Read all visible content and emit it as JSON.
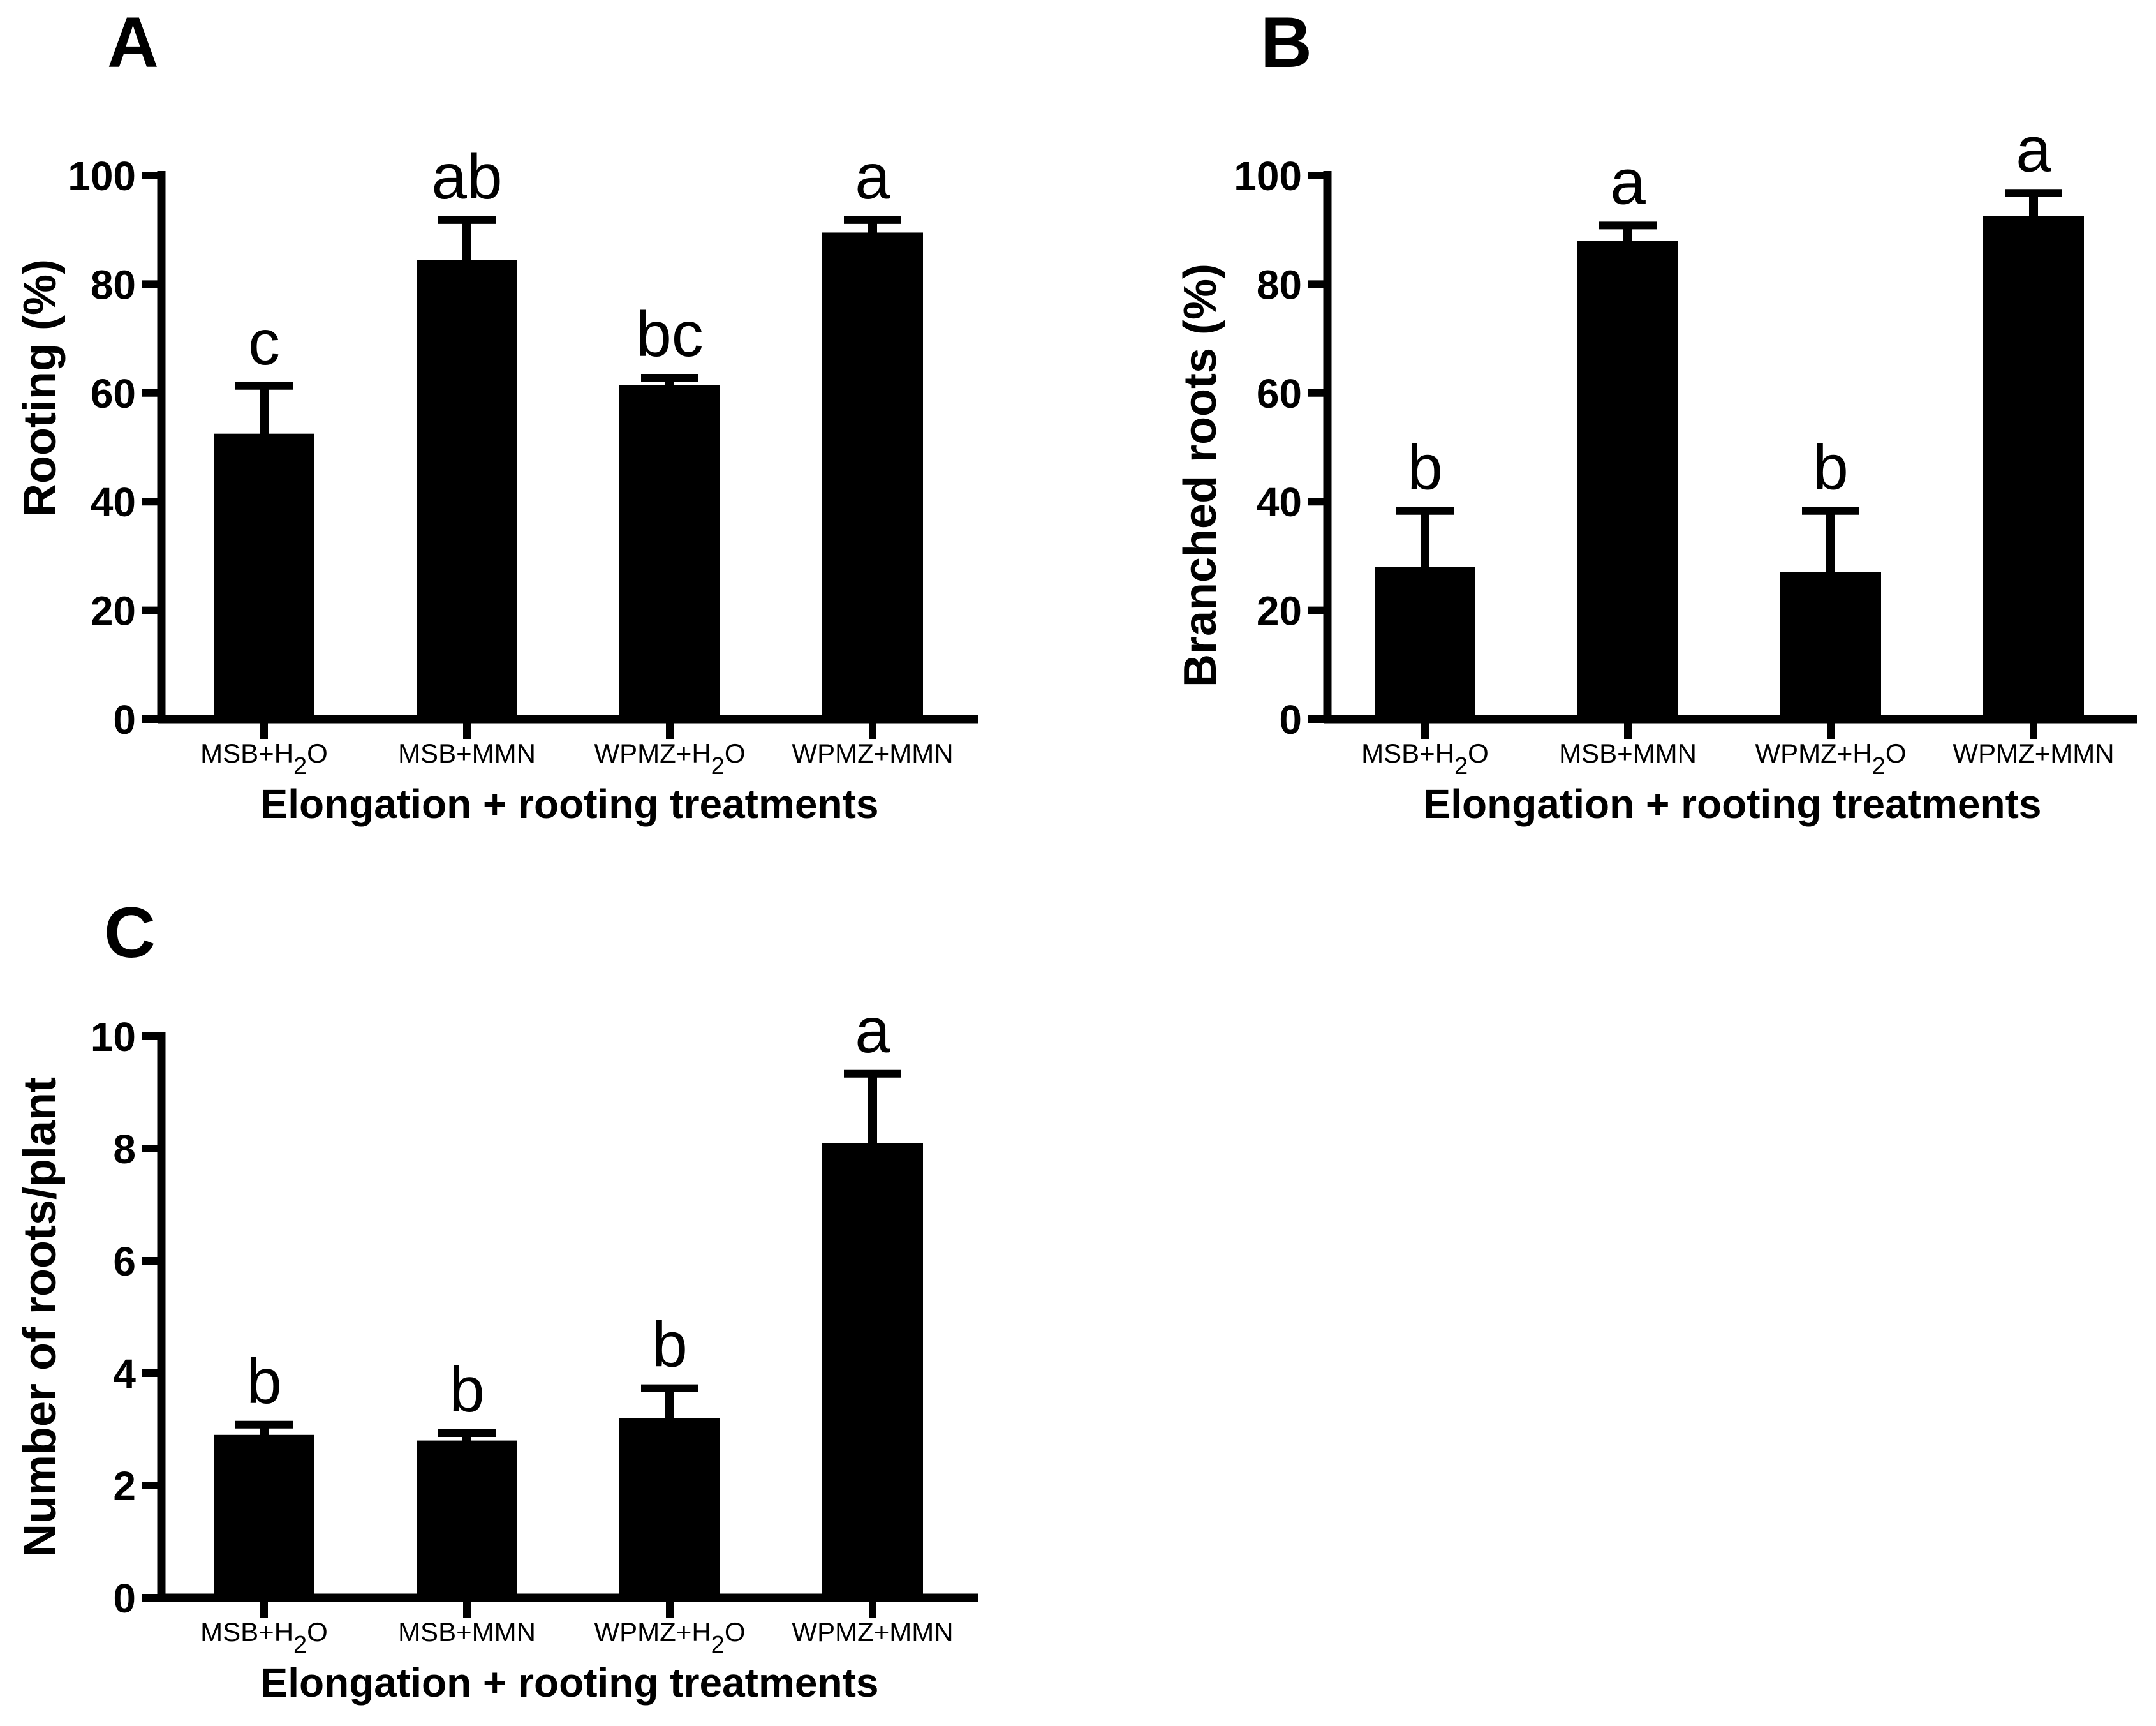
{
  "figure": {
    "background_color": "#ffffff",
    "ink_color": "#000000"
  },
  "chart_data": [
    {
      "type": "bar",
      "panel": "A",
      "title": "",
      "ylabel": "Rooting (%)",
      "xlabel": "Elongation + rooting treatments",
      "categories": [
        "MSB+H₂O",
        "MSB+MMN",
        "WPMZ+H₂O",
        "WPMZ+MMN"
      ],
      "values": [
        52.5,
        84.5,
        61.5,
        89.5
      ],
      "error_bars_upper": [
        9.5,
        8,
        2,
        3
      ],
      "sig_letters": [
        "c",
        "ab",
        "bc",
        "a"
      ],
      "ylim": [
        0,
        100
      ],
      "yticks": [
        0,
        20,
        40,
        60,
        80,
        100
      ],
      "bar_color": "#000000",
      "grid": false,
      "legend": "none"
    },
    {
      "type": "bar",
      "panel": "B",
      "title": "",
      "ylabel": "Branched roots (%)",
      "xlabel": "Elongation + rooting treatments",
      "categories": [
        "MSB+H₂O",
        "MSB+MMN",
        "WPMZ+H₂O",
        "WPMZ+MMN"
      ],
      "values": [
        28,
        88,
        27,
        92.5
      ],
      "error_bars_upper": [
        11,
        3.5,
        12,
        5
      ],
      "sig_letters": [
        "b",
        "a",
        "b",
        "a"
      ],
      "ylim": [
        0,
        100
      ],
      "yticks": [
        0,
        20,
        40,
        60,
        80,
        100
      ],
      "bar_color": "#000000",
      "grid": false,
      "legend": "none"
    },
    {
      "type": "bar",
      "panel": "C",
      "title": "",
      "ylabel": "Number of roots/plant",
      "xlabel": "Elongation + rooting treatments",
      "categories": [
        "MSB+H₂O",
        "MSB+MMN",
        "WPMZ+H₂O",
        "WPMZ+MMN"
      ],
      "values": [
        2.9,
        2.8,
        3.2,
        8.1
      ],
      "error_bars_upper": [
        0.25,
        0.2,
        0.6,
        1.3
      ],
      "sig_letters": [
        "b",
        "b",
        "b",
        "a"
      ],
      "ylim": [
        0,
        10
      ],
      "yticks": [
        0,
        2,
        4,
        6,
        8,
        10
      ],
      "bar_color": "#000000",
      "grid": false,
      "legend": "none"
    }
  ]
}
